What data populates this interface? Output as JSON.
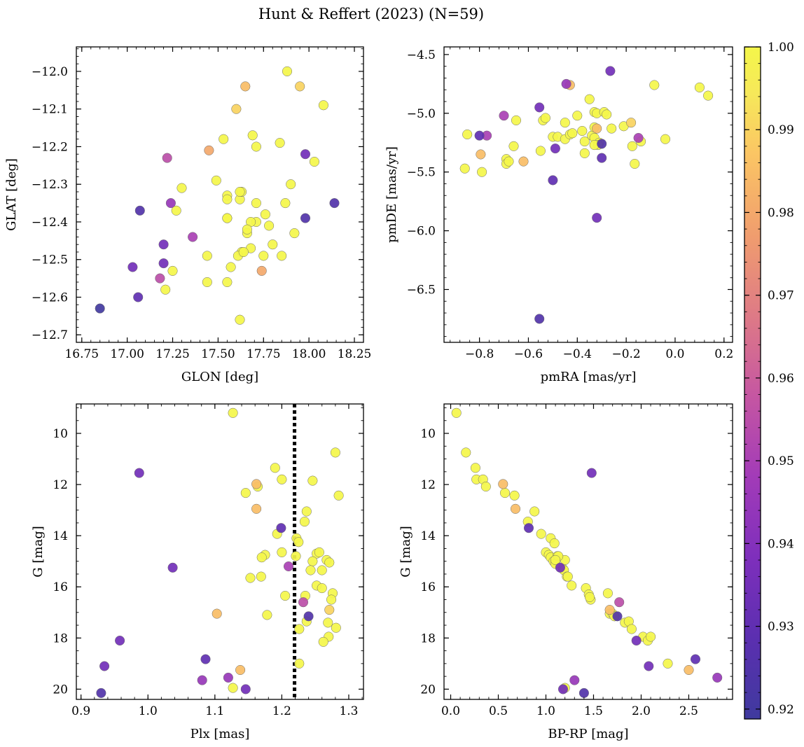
{
  "figure": {
    "title": "Hunt & Reffert (2023) (N=59)"
  },
  "colorbar": {
    "colormap": "plasma",
    "vmin": 0.9188,
    "vmax": 1.0,
    "ticks": [
      "0.92",
      "0.93",
      "0.94",
      "0.95",
      "0.96",
      "0.97",
      "0.98",
      "0.99",
      "1.00"
    ],
    "tick_values": [
      0.92,
      0.93,
      0.94,
      0.95,
      0.96,
      0.97,
      0.98,
      0.99,
      1.0
    ]
  },
  "chart_data": [
    {
      "type": "scatter",
      "id": "pos",
      "xlabel": "GLON [deg]",
      "ylabel": "GLAT [deg]",
      "xlim": [
        16.72,
        18.3
      ],
      "ylim": [
        -12.72,
        -11.935
      ],
      "y_inverted": false,
      "xticks": [
        16.75,
        17.0,
        17.25,
        17.5,
        17.75,
        18.0,
        18.25
      ],
      "xtick_labels": [
        "16.75",
        "17.00",
        "17.25",
        "17.50",
        "17.75",
        "18.00",
        "18.25"
      ],
      "yticks": [
        -12.0,
        -12.1,
        -12.2,
        -12.3,
        -12.4,
        -12.5,
        -12.6,
        -12.7
      ],
      "ytick_labels": [
        "−12.0",
        "−12.1",
        "−12.2",
        "−12.3",
        "−12.4",
        "−12.5",
        "−12.6",
        "−12.7"
      ],
      "points": [
        [
          16.85,
          -12.63,
          0.92
        ],
        [
          17.06,
          -12.6,
          0.93
        ],
        [
          17.03,
          -12.52,
          0.935
        ],
        [
          17.07,
          -12.37,
          0.925
        ],
        [
          17.2,
          -12.46,
          0.935
        ],
        [
          17.2,
          -12.51,
          0.935
        ],
        [
          17.18,
          -12.55,
          0.955
        ],
        [
          17.22,
          -12.23,
          0.955
        ],
        [
          17.24,
          -12.35,
          0.945
        ],
        [
          17.36,
          -12.44,
          0.95
        ],
        [
          17.98,
          -12.22,
          0.935
        ],
        [
          17.98,
          -12.39,
          0.925
        ],
        [
          18.14,
          -12.35,
          0.925
        ],
        [
          17.65,
          -12.04,
          0.985
        ],
        [
          17.95,
          -12.04,
          0.99
        ],
        [
          17.6,
          -12.1,
          0.99
        ],
        [
          17.45,
          -12.21,
          0.98
        ],
        [
          17.74,
          -12.53,
          0.98
        ],
        [
          17.88,
          -12.0,
          1.0
        ],
        [
          18.08,
          -12.09,
          1.0
        ],
        [
          17.53,
          -12.18,
          1.0
        ],
        [
          17.69,
          -12.17,
          1.0
        ],
        [
          17.71,
          -12.2,
          1.0
        ],
        [
          17.84,
          -12.19,
          1.0
        ],
        [
          18.03,
          -12.24,
          1.0
        ],
        [
          17.49,
          -12.29,
          1.0
        ],
        [
          17.3,
          -12.31,
          1.0
        ],
        [
          17.27,
          -12.37,
          1.0
        ],
        [
          17.25,
          -12.53,
          1.0
        ],
        [
          17.21,
          -12.58,
          1.0
        ],
        [
          17.44,
          -12.49,
          1.0
        ],
        [
          17.44,
          -12.56,
          1.0
        ],
        [
          17.55,
          -12.33,
          1.0
        ],
        [
          17.55,
          -12.34,
          1.0
        ],
        [
          17.55,
          -12.39,
          1.0
        ],
        [
          17.55,
          -12.56,
          1.0
        ],
        [
          17.57,
          -12.52,
          1.0
        ],
        [
          17.62,
          -12.34,
          1.0
        ],
        [
          17.63,
          -12.32,
          1.0
        ],
        [
          17.62,
          -12.32,
          1.0
        ],
        [
          17.71,
          -12.35,
          1.0
        ],
        [
          17.71,
          -12.4,
          1.0
        ],
        [
          17.68,
          -12.4,
          1.0
        ],
        [
          17.66,
          -12.43,
          1.0
        ],
        [
          17.66,
          -12.42,
          1.0
        ],
        [
          17.68,
          -12.47,
          1.0
        ],
        [
          17.63,
          -12.48,
          1.0
        ],
        [
          17.61,
          -12.49,
          1.0
        ],
        [
          17.64,
          -12.48,
          1.0
        ],
        [
          17.76,
          -12.38,
          1.0
        ],
        [
          17.78,
          -12.41,
          1.0
        ],
        [
          17.75,
          -12.49,
          1.0
        ],
        [
          17.8,
          -12.46,
          1.0
        ],
        [
          17.85,
          -12.49,
          1.0
        ],
        [
          17.87,
          -12.35,
          1.0
        ],
        [
          17.9,
          -12.3,
          1.0
        ],
        [
          17.92,
          -12.43,
          1.0
        ],
        [
          17.62,
          -12.66,
          1.0
        ],
        [
          17.55,
          -12.39,
          1.0
        ]
      ]
    },
    {
      "type": "scatter",
      "id": "pm",
      "xlabel": "pmRA [mas/yr]",
      "ylabel": "pmDE [mas/yr]",
      "xlim": [
        -0.945,
        0.235
      ],
      "ylim": [
        -6.95,
        -4.435
      ],
      "y_inverted": false,
      "xticks": [
        -0.8,
        -0.6,
        -0.4,
        -0.2,
        0.0,
        0.2
      ],
      "xtick_labels": [
        "−0.8",
        "−0.6",
        "−0.4",
        "−0.2",
        "0.0",
        "0.2"
      ],
      "yticks": [
        -4.5,
        -5.0,
        -5.5,
        -6.0,
        -6.5
      ],
      "ytick_labels": [
        "−4.5",
        "−5.0",
        "−5.5",
        "−6.0",
        "−6.5"
      ],
      "points": [
        [
          -0.555,
          -6.75,
          0.925
        ],
        [
          -0.32,
          -5.89,
          0.935
        ],
        [
          -0.5,
          -5.57,
          0.93
        ],
        [
          -0.8,
          -5.19,
          0.93
        ],
        [
          -0.555,
          -4.95,
          0.935
        ],
        [
          -0.49,
          -5.3,
          0.935
        ],
        [
          -0.3,
          -5.38,
          0.93
        ],
        [
          -0.3,
          -5.26,
          0.925
        ],
        [
          -0.265,
          -4.64,
          0.935
        ],
        [
          -0.445,
          -4.75,
          0.945
        ],
        [
          -0.7,
          -5.02,
          0.95
        ],
        [
          -0.77,
          -5.19,
          0.95
        ],
        [
          -0.15,
          -5.21,
          0.95
        ],
        [
          -0.43,
          -4.76,
          0.985
        ],
        [
          -0.795,
          -5.35,
          0.985
        ],
        [
          -0.62,
          -5.41,
          0.985
        ],
        [
          -0.18,
          -5.08,
          0.99
        ],
        [
          -0.32,
          -5.13,
          0.985
        ],
        [
          -0.85,
          -5.18,
          1.0
        ],
        [
          -0.86,
          -5.47,
          1.0
        ],
        [
          -0.79,
          -5.5,
          1.0
        ],
        [
          -0.69,
          -5.39,
          1.0
        ],
        [
          -0.69,
          -5.43,
          1.0
        ],
        [
          -0.68,
          -5.41,
          1.0
        ],
        [
          -0.65,
          -5.06,
          1.0
        ],
        [
          -0.66,
          -5.28,
          1.0
        ],
        [
          -0.55,
          -5.32,
          1.0
        ],
        [
          -0.54,
          -5.06,
          1.0
        ],
        [
          -0.53,
          -5.04,
          1.0
        ],
        [
          -0.5,
          -5.2,
          1.0
        ],
        [
          -0.48,
          -5.2,
          1.0
        ],
        [
          -0.45,
          -5.08,
          1.0
        ],
        [
          -0.45,
          -5.22,
          1.0
        ],
        [
          -0.43,
          -5.18,
          1.0
        ],
        [
          -0.42,
          -5.17,
          1.0
        ],
        [
          -0.4,
          -5.02,
          1.0
        ],
        [
          -0.38,
          -5.15,
          1.0
        ],
        [
          -0.37,
          -5.24,
          1.0
        ],
        [
          -0.37,
          -5.34,
          1.0
        ],
        [
          -0.35,
          -4.88,
          1.0
        ],
        [
          -0.34,
          -5.19,
          1.0
        ],
        [
          -0.33,
          -5.12,
          1.0
        ],
        [
          -0.33,
          -5.21,
          1.0
        ],
        [
          -0.33,
          -4.99,
          1.0
        ],
        [
          -0.32,
          -5.0,
          1.0
        ],
        [
          -0.31,
          -5.25,
          1.0
        ],
        [
          -0.29,
          -4.99,
          1.0
        ],
        [
          -0.28,
          -5.01,
          1.0
        ],
        [
          -0.26,
          -5.13,
          1.0
        ],
        [
          -0.21,
          -5.11,
          1.0
        ],
        [
          -0.175,
          -5.28,
          1.0
        ],
        [
          -0.165,
          -5.43,
          1.0
        ],
        [
          -0.14,
          -5.24,
          1.0
        ],
        [
          -0.085,
          -4.76,
          1.0
        ],
        [
          -0.04,
          -5.22,
          1.0
        ],
        [
          0.1,
          -4.78,
          1.0
        ],
        [
          0.135,
          -4.85,
          1.0
        ],
        [
          -0.315,
          -5.27,
          1.0
        ],
        [
          -0.33,
          -5.27,
          1.0
        ]
      ]
    },
    {
      "type": "scatter",
      "id": "plx",
      "xlabel": "Plx [mas]",
      "ylabel": "G [mag]",
      "xlim": [
        0.893,
        1.322
      ],
      "ylim": [
        8.85,
        20.4
      ],
      "y_inverted": true,
      "vline": 1.219,
      "xticks": [
        0.9,
        1.0,
        1.1,
        1.2,
        1.3
      ],
      "xtick_labels": [
        "0.9",
        "1.0",
        "1.1",
        "1.2",
        "1.3"
      ],
      "yticks": [
        10,
        12,
        14,
        16,
        18,
        20
      ],
      "ytick_labels": [
        "10",
        "12",
        "14",
        "16",
        "18",
        "20"
      ],
      "points": [
        [
          0.93,
          20.15,
          0.925
        ],
        [
          0.935,
          19.1,
          0.935
        ],
        [
          0.958,
          18.1,
          0.935
        ],
        [
          0.987,
          11.55,
          0.935
        ],
        [
          1.037,
          15.25,
          0.935
        ],
        [
          1.086,
          18.83,
          0.93
        ],
        [
          1.081,
          19.65,
          0.945
        ],
        [
          1.12,
          19.55,
          0.945
        ],
        [
          1.146,
          20.0,
          0.935
        ],
        [
          1.199,
          13.7,
          0.93
        ],
        [
          1.21,
          15.2,
          0.95
        ],
        [
          1.24,
          17.15,
          0.925
        ],
        [
          1.232,
          16.6,
          0.955
        ],
        [
          1.103,
          17.05,
          0.985
        ],
        [
          1.138,
          19.25,
          0.985
        ],
        [
          1.162,
          11.98,
          0.985
        ],
        [
          1.162,
          12.95,
          0.985
        ],
        [
          1.271,
          16.9,
          0.99
        ],
        [
          1.127,
          9.2,
          1.0
        ],
        [
          1.28,
          10.75,
          1.0
        ],
        [
          1.19,
          11.35,
          1.0
        ],
        [
          1.2,
          11.8,
          1.0
        ],
        [
          1.164,
          12.08,
          1.0
        ],
        [
          1.146,
          12.33,
          1.0
        ],
        [
          1.285,
          12.43,
          1.0
        ],
        [
          1.246,
          11.85,
          1.0
        ],
        [
          1.237,
          13.05,
          1.0
        ],
        [
          1.234,
          13.45,
          1.0
        ],
        [
          1.193,
          13.93,
          1.0
        ],
        [
          1.175,
          14.75,
          1.0
        ],
        [
          1.17,
          14.85,
          1.0
        ],
        [
          1.2,
          14.65,
          1.0
        ],
        [
          1.222,
          14.1,
          1.0
        ],
        [
          1.225,
          14.25,
          1.0
        ],
        [
          1.221,
          14.8,
          1.0
        ],
        [
          1.252,
          14.7,
          1.0
        ],
        [
          1.256,
          14.65,
          1.0
        ],
        [
          1.246,
          15.0,
          1.0
        ],
        [
          1.243,
          15.35,
          1.0
        ],
        [
          1.26,
          15.35,
          1.0
        ],
        [
          1.267,
          14.95,
          1.0
        ],
        [
          1.271,
          15.05,
          1.0
        ],
        [
          1.153,
          15.65,
          1.0
        ],
        [
          1.169,
          15.6,
          1.0
        ],
        [
          1.252,
          15.95,
          1.0
        ],
        [
          1.26,
          16.05,
          1.0
        ],
        [
          1.235,
          16.35,
          1.0
        ],
        [
          1.205,
          16.35,
          1.0
        ],
        [
          1.276,
          16.25,
          1.0
        ],
        [
          1.274,
          16.5,
          1.0
        ],
        [
          1.178,
          17.1,
          1.0
        ],
        [
          1.237,
          17.35,
          1.0
        ],
        [
          1.269,
          17.4,
          1.0
        ],
        [
          1.281,
          17.6,
          1.0
        ],
        [
          1.226,
          17.65,
          1.0
        ],
        [
          1.27,
          17.95,
          1.0
        ],
        [
          1.262,
          18.15,
          1.0
        ],
        [
          1.127,
          19.95,
          1.0
        ],
        [
          1.226,
          19.0,
          1.0
        ]
      ]
    },
    {
      "type": "scatter",
      "id": "cmd",
      "xlabel": "BP-RP [mag]",
      "ylabel": "G [mag]",
      "xlim": [
        -0.07,
        2.96
      ],
      "ylim": [
        8.85,
        20.4
      ],
      "y_inverted": true,
      "xticks": [
        0.0,
        0.5,
        1.0,
        1.5,
        2.0,
        2.5
      ],
      "xtick_labels": [
        "0.0",
        "0.5",
        "1.0",
        "1.5",
        "2.0",
        "2.5"
      ],
      "yticks": [
        10,
        12,
        14,
        16,
        18,
        20
      ],
      "ytick_labels": [
        "10",
        "12",
        "14",
        "16",
        "18",
        "20"
      ],
      "points": [
        [
          1.4,
          20.15,
          0.925
        ],
        [
          2.08,
          19.1,
          0.935
        ],
        [
          1.95,
          18.1,
          0.935
        ],
        [
          1.48,
          11.55,
          0.935
        ],
        [
          1.15,
          15.25,
          0.935
        ],
        [
          2.57,
          18.83,
          0.93
        ],
        [
          2.8,
          19.55,
          0.945
        ],
        [
          1.3,
          19.65,
          0.945
        ],
        [
          1.18,
          20.0,
          0.935
        ],
        [
          0.82,
          13.7,
          0.93
        ],
        [
          1.77,
          16.6,
          0.955
        ],
        [
          1.75,
          17.15,
          0.925
        ],
        [
          1.67,
          16.9,
          0.985
        ],
        [
          0.55,
          11.98,
          0.985
        ],
        [
          0.68,
          12.95,
          0.985
        ],
        [
          2.5,
          19.25,
          0.985
        ],
        [
          0.06,
          9.2,
          1.0
        ],
        [
          0.16,
          10.75,
          1.0
        ],
        [
          0.26,
          11.35,
          1.0
        ],
        [
          0.27,
          11.8,
          1.0
        ],
        [
          0.34,
          11.8,
          1.0
        ],
        [
          0.37,
          12.08,
          1.0
        ],
        [
          0.57,
          12.33,
          1.0
        ],
        [
          0.67,
          12.43,
          1.0
        ],
        [
          0.88,
          13.05,
          1.0
        ],
        [
          0.81,
          13.45,
          1.0
        ],
        [
          0.95,
          13.93,
          1.0
        ],
        [
          1.05,
          14.1,
          1.0
        ],
        [
          1.09,
          14.3,
          1.0
        ],
        [
          1.0,
          14.65,
          1.0
        ],
        [
          1.03,
          14.75,
          1.0
        ],
        [
          1.05,
          14.85,
          1.0
        ],
        [
          1.12,
          14.8,
          1.0
        ],
        [
          1.08,
          15.0,
          1.0
        ],
        [
          1.1,
          15.1,
          1.0
        ],
        [
          1.2,
          14.95,
          1.0
        ],
        [
          1.18,
          15.3,
          1.0
        ],
        [
          1.19,
          15.35,
          1.0
        ],
        [
          1.22,
          15.6,
          1.0
        ],
        [
          1.27,
          15.95,
          1.0
        ],
        [
          1.42,
          16.05,
          1.0
        ],
        [
          1.45,
          16.3,
          1.0
        ],
        [
          1.47,
          16.5,
          1.0
        ],
        [
          1.65,
          16.25,
          1.0
        ],
        [
          1.67,
          17.05,
          1.0
        ],
        [
          1.7,
          17.05,
          1.0
        ],
        [
          1.83,
          17.4,
          1.0
        ],
        [
          1.87,
          17.35,
          1.0
        ],
        [
          1.9,
          17.65,
          1.0
        ],
        [
          2.02,
          17.95,
          1.0
        ],
        [
          2.07,
          18.1,
          1.0
        ],
        [
          2.1,
          17.95,
          1.0
        ],
        [
          2.28,
          19.0,
          1.0
        ],
        [
          1.2,
          19.95,
          1.0
        ],
        [
          1.13,
          14.8,
          1.0
        ],
        [
          1.1,
          14.95,
          1.0
        ],
        [
          1.23,
          15.6,
          1.0
        ],
        [
          1.46,
          16.4,
          1.0
        ],
        [
          1.72,
          17.15,
          1.0
        ]
      ]
    }
  ]
}
